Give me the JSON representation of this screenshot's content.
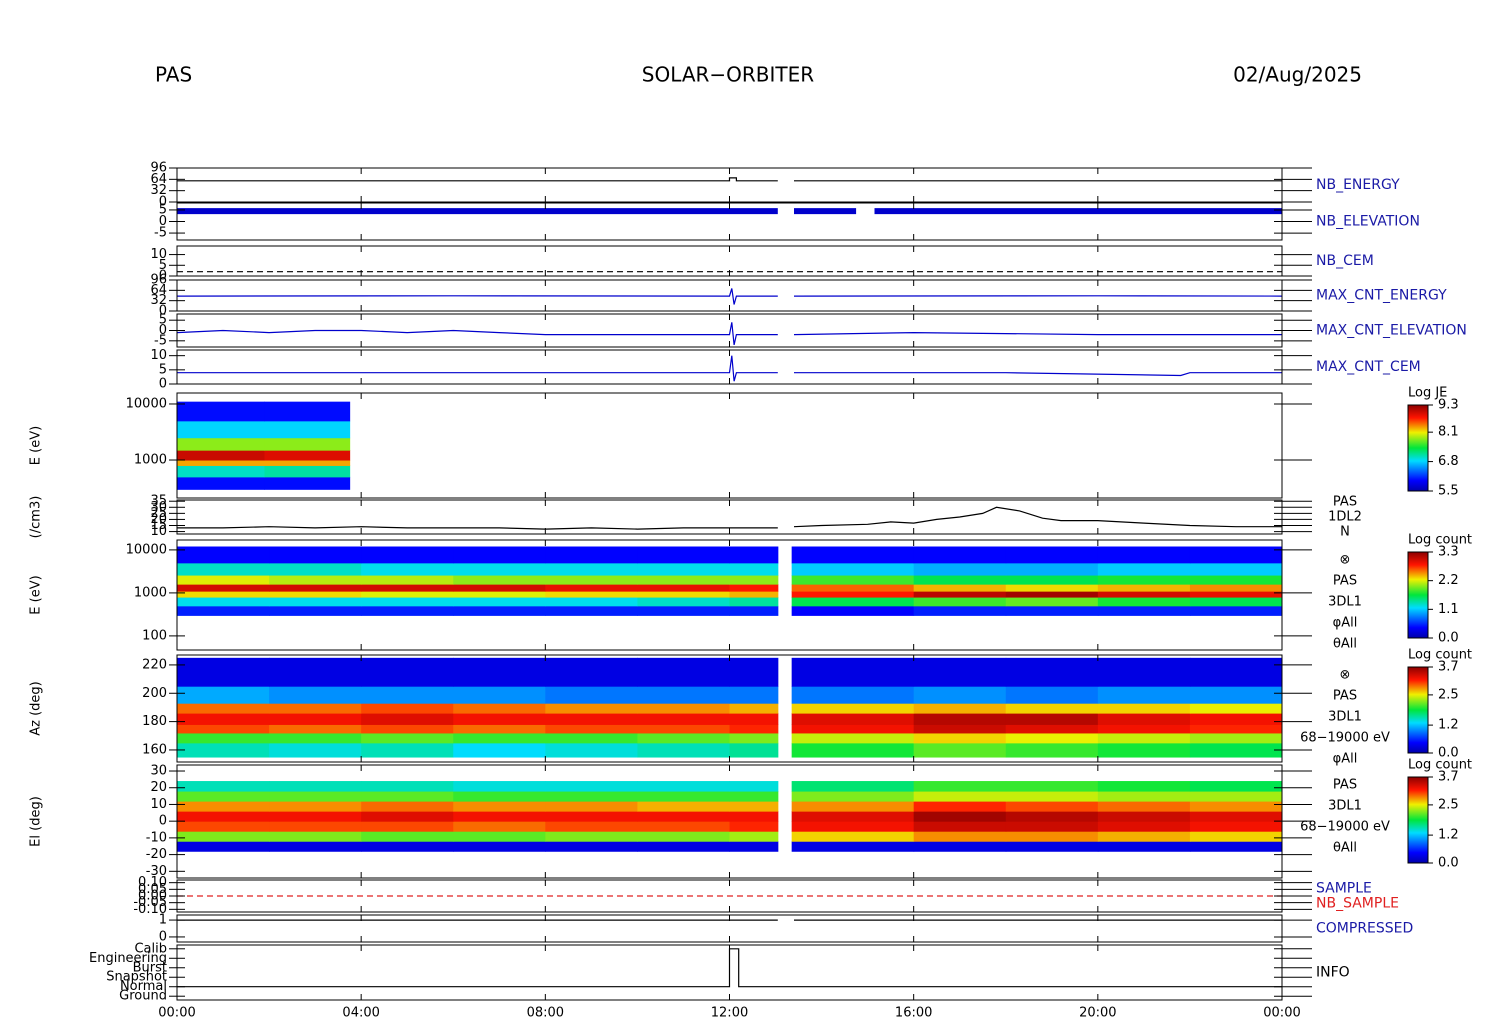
{
  "header": {
    "left": "PAS",
    "center": "SOLAR−ORBITER",
    "right": "02/Aug/2025"
  },
  "xlim": [
    0,
    24
  ],
  "xticks": [
    {
      "value": 0,
      "label": "00:00"
    },
    {
      "value": 4,
      "label": "04:00"
    },
    {
      "value": 8,
      "label": "08:00"
    },
    {
      "value": 12,
      "label": "12:00"
    },
    {
      "value": 16,
      "label": "16:00"
    },
    {
      "value": 20,
      "label": "20:00"
    },
    {
      "value": 24,
      "label": "00:00"
    }
  ],
  "chart_data": [
    {
      "type": "line",
      "labels": [
        {
          "text": "NB_ENERGY",
          "color": "#1a1aa6"
        }
      ],
      "ylim": [
        0,
        96
      ],
      "yticks": [
        0,
        32,
        64,
        96
      ],
      "color": "#000000",
      "x": [
        0,
        12,
        12,
        12.15,
        12.15,
        13.05,
        13.2,
        13.4,
        24
      ],
      "values": [
        60,
        60,
        68,
        68,
        60,
        60,
        null,
        60,
        60
      ]
    },
    {
      "type": "line",
      "labels": [
        {
          "text": "NB_ELEVATION",
          "color": "#1a1aa6"
        }
      ],
      "ylim": [
        -8,
        8
      ],
      "yticks": [
        -5,
        0,
        5
      ],
      "color": "#0000cc",
      "width": 6,
      "x": [
        0,
        13.05,
        13.2,
        13.4,
        14.75,
        14.9,
        15.15,
        24
      ],
      "values": [
        4.5,
        4.5,
        null,
        4.5,
        4.5,
        null,
        4.5,
        4.5
      ]
    },
    {
      "type": "line",
      "labels": [
        {
          "text": "NB_CEM",
          "color": "#1a1aa6"
        }
      ],
      "ylim": [
        0,
        14
      ],
      "yticks": [
        0,
        5,
        10
      ],
      "color": "#000000",
      "dashed": true,
      "x": [
        0,
        24
      ],
      "values": [
        2,
        2
      ]
    },
    {
      "type": "line",
      "labels": [
        {
          "text": "MAX_CNT_ENERGY",
          "color": "#1a1aa6"
        }
      ],
      "ylim": [
        0,
        96
      ],
      "yticks": [
        0,
        32,
        64,
        96
      ],
      "color": "#0000cc",
      "x": [
        0,
        6,
        12,
        12.05,
        12.1,
        12.15,
        13.05,
        13.2,
        13.4,
        20,
        24
      ],
      "values": [
        46,
        47,
        46,
        70,
        20,
        46,
        46,
        null,
        46,
        47,
        46
      ]
    },
    {
      "type": "line",
      "labels": [
        {
          "text": "MAX_CNT_ELEVATION",
          "color": "#1a1aa6"
        }
      ],
      "ylim": [
        -8,
        8
      ],
      "yticks": [
        -5,
        0,
        5
      ],
      "color": "#0000cc",
      "x": [
        0,
        1,
        2,
        3,
        4,
        5,
        6,
        7,
        8,
        10,
        12,
        12.05,
        12.1,
        12.15,
        13.05,
        13.2,
        13.4,
        16,
        20,
        24
      ],
      "values": [
        -1,
        0,
        -1,
        0,
        0,
        -1,
        0,
        -1,
        -2,
        -2,
        -2,
        4,
        -7,
        -2,
        -2,
        null,
        -2,
        -1,
        -2,
        -2
      ]
    },
    {
      "type": "line",
      "labels": [
        {
          "text": "MAX_CNT_CEM",
          "color": "#1a1aa6"
        }
      ],
      "ylim": [
        0,
        12
      ],
      "yticks": [
        0,
        5,
        10
      ],
      "color": "#0000cc",
      "x": [
        0,
        3,
        6,
        9,
        12,
        12.05,
        12.1,
        12.15,
        13.05,
        13.2,
        13.4,
        18,
        21.8,
        22,
        24
      ],
      "values": [
        4,
        4,
        4,
        4,
        4,
        10,
        1,
        4,
        4,
        null,
        4,
        4,
        3,
        4,
        4
      ]
    },
    {
      "type": "heatmap",
      "ylabel": "E (eV)",
      "log": true,
      "ylim": [
        210,
        15700
      ],
      "yticks": [
        1000,
        10000
      ],
      "x": [
        0,
        1.9,
        3.75
      ],
      "y": [
        300,
        500,
        800,
        1000,
        1500,
        2500,
        5000,
        11000
      ],
      "z": [
        [
          6.0,
          6.0
        ],
        [
          7.0,
          7.1
        ],
        [
          8.3,
          8.3
        ],
        [
          9.0,
          8.9
        ],
        [
          7.8,
          7.8
        ],
        [
          6.8,
          6.8
        ],
        [
          6.0,
          6.0
        ]
      ],
      "colorbar": {
        "title": "Log JE",
        "lim": [
          5.5,
          9.3
        ],
        "ticks": [
          5.5,
          6.8,
          8.1,
          9.3
        ]
      }
    },
    {
      "type": "line",
      "ylabel": "(/cm3)",
      "labels": [
        {
          "text": "PAS",
          "color": "#000000"
        },
        {
          "text": "1DL2",
          "color": "#000000"
        },
        {
          "text": "N",
          "color": "#000000"
        }
      ],
      "ylim": [
        8,
        36
      ],
      "yticks": [
        10,
        15,
        20,
        25,
        30,
        35
      ],
      "color": "#000000",
      "x": [
        0,
        1,
        2,
        3,
        4,
        5,
        6,
        7,
        8,
        9,
        10,
        11,
        12,
        13.05,
        13.2,
        13.4,
        14,
        15,
        15.5,
        16,
        16.5,
        17,
        17.5,
        17.8,
        18.3,
        18.8,
        19.2,
        20,
        21,
        22,
        23,
        24
      ],
      "values": [
        13,
        13,
        14,
        13,
        14,
        13,
        13,
        13,
        12,
        13,
        12,
        13,
        13,
        13,
        null,
        14,
        15,
        16,
        18,
        17,
        20,
        22,
        25,
        30,
        27,
        21,
        19,
        19,
        17,
        15,
        14,
        14
      ]
    },
    {
      "type": "heatmap",
      "ylabel": "E (eV)",
      "log": true,
      "ylim": [
        47,
        17000
      ],
      "yticks": [
        100,
        1000,
        10000
      ],
      "labels": [
        {
          "text": "⊗",
          "color": "#000000"
        },
        {
          "text": "PAS",
          "color": "#000000"
        },
        {
          "text": "3DL1",
          "color": "#000000"
        },
        {
          "text": "φAll",
          "color": "#000000"
        },
        {
          "text": "θAll",
          "color": "#000000"
        }
      ],
      "x": [
        0,
        2,
        4,
        6,
        8,
        10,
        12,
        13.05,
        13.35,
        16,
        18,
        20,
        22,
        24
      ],
      "y": [
        300,
        500,
        800,
        1100,
        1600,
        2600,
        5000,
        12000
      ],
      "z": [
        [
          0.5,
          0.5,
          0.5,
          0.5,
          0.5,
          0.5,
          0.5,
          null,
          0.4,
          0.5,
          0.5,
          0.5,
          0.5
        ],
        [
          1.2,
          1.2,
          1.2,
          1.2,
          1.2,
          1.3,
          1.4,
          null,
          1.6,
          1.8,
          1.9,
          1.7,
          1.6
        ],
        [
          2.3,
          2.3,
          2.2,
          2.2,
          2.3,
          2.3,
          2.4,
          null,
          2.8,
          3.1,
          3.2,
          3.0,
          2.9
        ],
        [
          3.0,
          3.0,
          3.0,
          3.0,
          2.9,
          2.9,
          2.8,
          null,
          2.6,
          2.4,
          2.3,
          2.4,
          2.5
        ],
        [
          2.2,
          2.1,
          2.1,
          2.0,
          2.0,
          2.0,
          2.0,
          null,
          1.8,
          1.6,
          1.6,
          1.7,
          1.7
        ],
        [
          1.3,
          1.3,
          1.2,
          1.2,
          1.2,
          1.2,
          1.2,
          null,
          1.1,
          1.0,
          1.0,
          1.1,
          1.1
        ],
        [
          0.4,
          0.4,
          0.4,
          0.4,
          0.4,
          0.4,
          0.4,
          null,
          0.4,
          0.4,
          0.4,
          0.4,
          0.4
        ]
      ],
      "colorbar": {
        "title": "Log count",
        "lim": [
          0,
          3.3
        ],
        "ticks": [
          {
            "value": 0,
            "label": "0.0"
          },
          1.1,
          2.2,
          3.3
        ]
      }
    },
    {
      "type": "heatmap",
      "ylabel": "Az (deg)",
      "ylim": [
        151.5,
        227
      ],
      "yticks": [
        160,
        180,
        200,
        220
      ],
      "labels": [
        {
          "text": "⊗",
          "color": "#000000"
        },
        {
          "text": "PAS",
          "color": "#000000"
        },
        {
          "text": "3DL1",
          "color": "#000000"
        },
        {
          "text": "68−19000 eV",
          "color": "#000000"
        },
        {
          "text": "φAll",
          "color": "#000000"
        }
      ],
      "x": [
        0,
        2,
        4,
        6,
        8,
        10,
        12,
        13.05,
        13.35,
        16,
        18,
        20,
        22,
        24
      ],
      "y": [
        155,
        165,
        172,
        178,
        186,
        193,
        205,
        225
      ],
      "z": [
        [
          1.5,
          1.4,
          1.5,
          1.3,
          1.4,
          1.5,
          1.6,
          null,
          1.9,
          2.1,
          2.0,
          1.9,
          1.8
        ],
        [
          2.0,
          2.0,
          2.1,
          2.0,
          2.0,
          2.1,
          2.2,
          null,
          2.4,
          2.6,
          2.5,
          2.4,
          2.3
        ],
        [
          3.0,
          2.9,
          3.0,
          2.9,
          3.0,
          3.0,
          3.1,
          null,
          3.2,
          3.4,
          3.3,
          3.2,
          3.1
        ],
        [
          3.2,
          3.2,
          3.3,
          3.2,
          3.2,
          3.2,
          3.2,
          null,
          3.3,
          3.5,
          3.5,
          3.3,
          3.2
        ],
        [
          2.9,
          2.9,
          3.0,
          2.9,
          2.8,
          2.8,
          2.7,
          null,
          2.6,
          2.7,
          2.6,
          2.6,
          2.5
        ],
        [
          1.1,
          1.0,
          1.0,
          1.0,
          0.9,
          0.9,
          0.9,
          null,
          0.9,
          1.0,
          0.9,
          1.0,
          1.0
        ],
        [
          0.3,
          0.3,
          0.3,
          0.3,
          0.3,
          0.3,
          0.3,
          null,
          0.3,
          0.3,
          0.3,
          0.3,
          0.3
        ]
      ],
      "colorbar": {
        "title": "Log count",
        "lim": [
          0,
          3.7
        ],
        "ticks": [
          {
            "value": 0,
            "label": "0.0"
          },
          1.2,
          2.5,
          3.7
        ]
      }
    },
    {
      "type": "heatmap",
      "ylabel": "El (deg)",
      "ylim": [
        -34,
        33.6
      ],
      "yticks": [
        -30,
        -20,
        -10,
        0,
        10,
        20,
        30
      ],
      "labels": [
        {
          "text": "PAS",
          "color": "#000000"
        },
        {
          "text": "3DL1",
          "color": "#000000"
        },
        {
          "text": "68−19000 eV",
          "color": "#000000"
        },
        {
          "text": "θAll",
          "color": "#000000"
        }
      ],
      "x": [
        0,
        2,
        4,
        6,
        8,
        10,
        12,
        13.05,
        13.35,
        16,
        18,
        20,
        22,
        24
      ],
      "y": [
        -18,
        -12,
        -6,
        0,
        6,
        12,
        18,
        24
      ],
      "z": [
        [
          0.3,
          0.3,
          0.3,
          0.3,
          0.3,
          0.3,
          0.3,
          null,
          0.3,
          0.3,
          0.3,
          0.3,
          0.3
        ],
        [
          2.2,
          2.2,
          2.1,
          2.1,
          2.2,
          2.2,
          2.3,
          null,
          2.6,
          2.8,
          2.8,
          2.7,
          2.6
        ],
        [
          3.0,
          3.0,
          3.0,
          2.9,
          3.0,
          3.0,
          3.1,
          null,
          3.2,
          3.4,
          3.4,
          3.3,
          3.2
        ],
        [
          3.2,
          3.2,
          3.3,
          3.2,
          3.2,
          3.2,
          3.2,
          null,
          3.3,
          3.6,
          3.5,
          3.4,
          3.3
        ],
        [
          2.8,
          2.8,
          2.9,
          2.8,
          2.8,
          2.7,
          2.7,
          null,
          2.8,
          3.1,
          3.0,
          2.9,
          2.8
        ],
        [
          2.1,
          2.1,
          2.1,
          2.0,
          2.0,
          2.0,
          2.0,
          null,
          2.2,
          2.4,
          2.4,
          2.3,
          2.3
        ],
        [
          1.5,
          1.5,
          1.5,
          1.4,
          1.4,
          1.4,
          1.4,
          null,
          1.7,
          2.0,
          2.0,
          1.9,
          1.8
        ]
      ],
      "colorbar": {
        "title": "Log count",
        "lim": [
          0,
          3.7
        ],
        "ticks": [
          {
            "value": 0,
            "label": "0.0"
          },
          1.2,
          2.5,
          3.7
        ]
      }
    },
    {
      "type": "line",
      "labels": [
        {
          "text": "SAMPLE",
          "color": "#1a1aa6"
        },
        {
          "text": "NB_SAMPLE",
          "color": "#e02020"
        }
      ],
      "ylim": [
        -0.12,
        0.12
      ],
      "yticks": [
        {
          "value": -0.1,
          "label": "-0.10"
        },
        {
          "value": -0.05,
          "label": "-0.05"
        },
        {
          "value": 0,
          "label": "0.00"
        },
        {
          "value": 0.05,
          "label": "0.05"
        },
        {
          "value": 0.1,
          "label": "0.10"
        }
      ],
      "color": "#e02020",
      "dashed": true,
      "x": [
        0,
        24
      ],
      "values": [
        0,
        0
      ]
    },
    {
      "type": "line",
      "labels": [
        {
          "text": "COMPRESSED",
          "color": "#1a1aa6"
        }
      ],
      "ylim": [
        -0.3,
        1.3
      ],
      "yticks": [
        0,
        1
      ],
      "color": "#000000",
      "x": [
        0,
        13.05,
        13.2,
        13.4,
        24
      ],
      "values": [
        1,
        1,
        null,
        1,
        1
      ]
    },
    {
      "type": "line",
      "labels": [
        {
          "text": "INFO",
          "color": "#000000"
        }
      ],
      "ylim": [
        -0.4,
        5.4
      ],
      "yticks": [
        {
          "value": 0,
          "label": "Ground"
        },
        {
          "value": 1,
          "label": "Normal"
        },
        {
          "value": 2,
          "label": "Snapshot"
        },
        {
          "value": 3,
          "label": "Burst"
        },
        {
          "value": 4,
          "label": "Engineering"
        },
        {
          "value": 5,
          "label": "Calib"
        }
      ],
      "color": "#000000",
      "x": [
        0,
        12,
        12,
        12.2,
        12.2,
        24
      ],
      "values": [
        1,
        1,
        5,
        5,
        1,
        1
      ]
    }
  ]
}
